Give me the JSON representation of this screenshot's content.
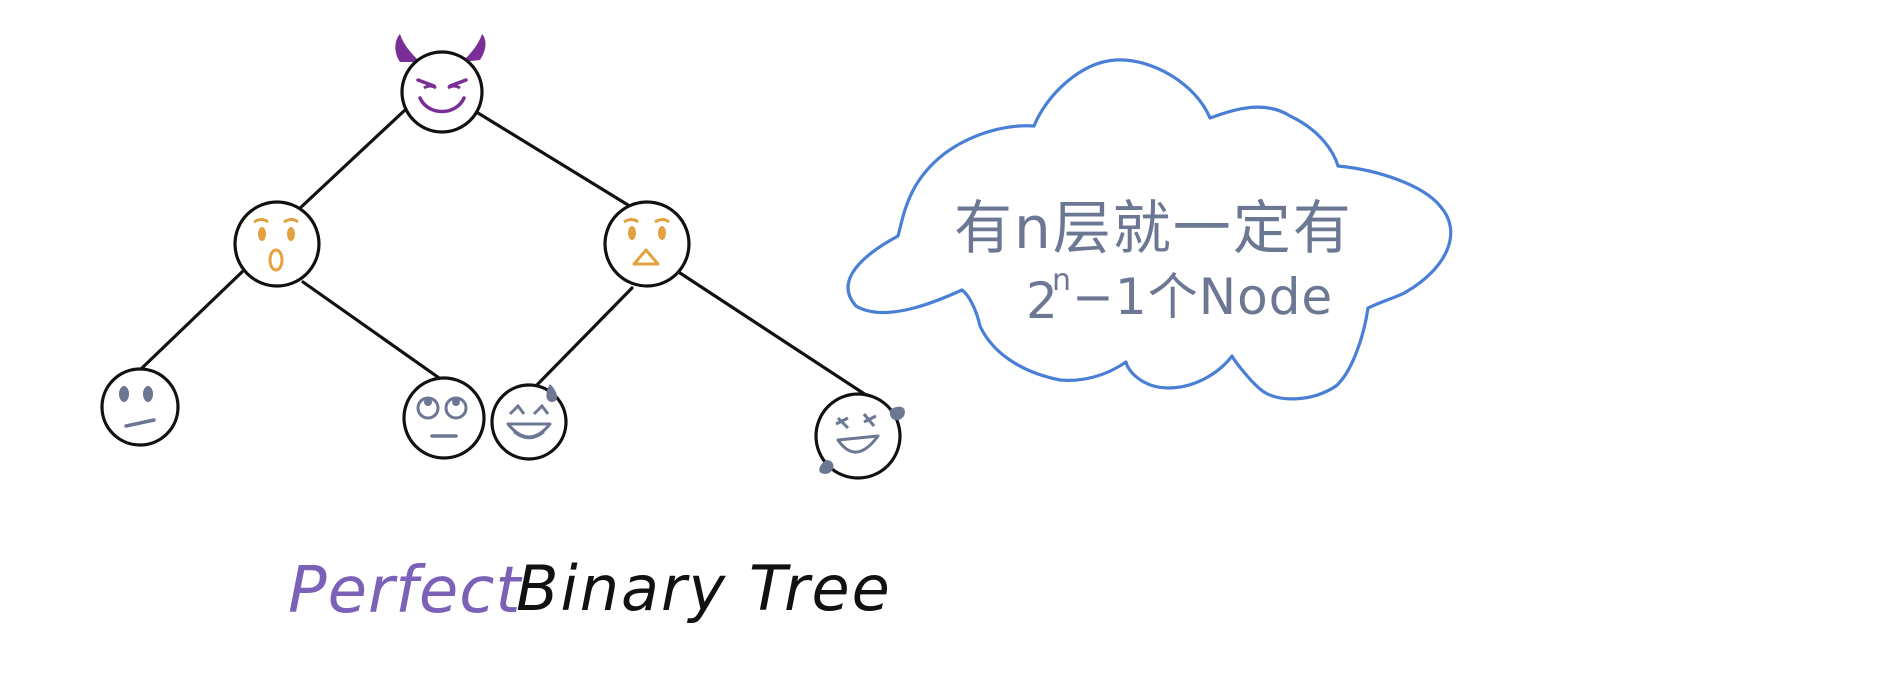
{
  "diagram": {
    "title_part1": "Perfect",
    "title_part2": "Binary Tree",
    "note_line1": "有n层就一定有",
    "note_line2_base": "2",
    "note_line2_sup": "n",
    "note_line2_rest": "−1个Node"
  },
  "nodes": [
    {
      "id": "root",
      "emoji": "devil-face-icon"
    },
    {
      "id": "left",
      "emoji": "surprised-face-icon"
    },
    {
      "id": "right",
      "emoji": "frowning-face-icon"
    },
    {
      "id": "left-left",
      "emoji": "neutral-face-icon"
    },
    {
      "id": "left-right",
      "emoji": "eye-roll-face-icon"
    },
    {
      "id": "right-left",
      "emoji": "sweat-smile-face-icon"
    },
    {
      "id": "right-right",
      "emoji": "tears-of-joy-face-icon"
    }
  ],
  "colors": {
    "line": "#111111",
    "cloud": "#4a7fd6",
    "note": "#6b7793",
    "devil": "#7a2f96",
    "orange": "#e3a13f",
    "blue_gray": "#6b7793",
    "purple_text": "#7b62b8"
  }
}
